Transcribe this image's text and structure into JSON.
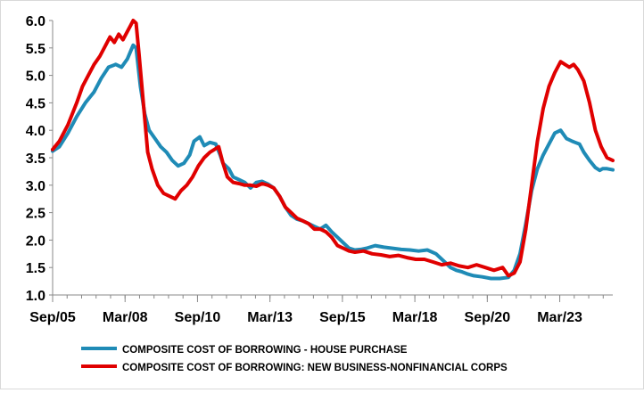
{
  "chart_data": {
    "type": "line",
    "title": "",
    "xlabel": "",
    "ylabel": "",
    "ylim": [
      1.0,
      6.0
    ],
    "yticks": [
      "1.0",
      "1.5",
      "2.0",
      "2.5",
      "3.0",
      "3.5",
      "4.0",
      "4.5",
      "5.0",
      "5.5",
      "6.0"
    ],
    "xlim": [
      2005.67,
      2025.0
    ],
    "xticks": [
      {
        "label": "Sep/05",
        "x": 2005.67
      },
      {
        "label": "Mar/08",
        "x": 2008.17
      },
      {
        "label": "Sep/10",
        "x": 2010.67
      },
      {
        "label": "Mar/13",
        "x": 2013.17
      },
      {
        "label": "Sep/15",
        "x": 2015.67
      },
      {
        "label": "Mar/18",
        "x": 2018.17
      },
      {
        "label": "Sep/20",
        "x": 2020.67
      },
      {
        "label": "Mar/23",
        "x": 2023.17
      }
    ],
    "grid": false,
    "legend_position": "bottom",
    "series": [
      {
        "name": "COMPOSITE COST OF BORROWING - HOUSE PURCHASE",
        "color": "#1f8bb6",
        "x": [
          2005.67,
          2005.9,
          2006.2,
          2006.5,
          2006.8,
          2007.1,
          2007.35,
          2007.6,
          2007.85,
          2008.05,
          2008.25,
          2008.45,
          2008.55,
          2008.7,
          2008.85,
          2009.0,
          2009.2,
          2009.4,
          2009.6,
          2009.8,
          2010.0,
          2010.2,
          2010.4,
          2010.55,
          2010.75,
          2010.9,
          2011.1,
          2011.3,
          2011.45,
          2011.55,
          2011.75,
          2011.9,
          2012.1,
          2012.3,
          2012.5,
          2012.7,
          2012.9,
          2013.1,
          2013.3,
          2013.5,
          2013.7,
          2013.9,
          2014.1,
          2014.3,
          2014.5,
          2014.7,
          2014.9,
          2015.1,
          2015.3,
          2015.5,
          2015.7,
          2015.9,
          2016.1,
          2016.3,
          2016.5,
          2016.8,
          2017.1,
          2017.4,
          2017.7,
          2018.0,
          2018.3,
          2018.6,
          2018.9,
          2019.2,
          2019.4,
          2019.6,
          2019.8,
          2020.0,
          2020.2,
          2020.5,
          2020.8,
          2021.1,
          2021.4,
          2021.6,
          2021.8,
          2022.0,
          2022.2,
          2022.4,
          2022.6,
          2022.8,
          2023.0,
          2023.2,
          2023.4,
          2023.6,
          2023.7,
          2023.85,
          2024.0,
          2024.2,
          2024.4,
          2024.55,
          2024.65,
          2024.8,
          2025.0
        ],
        "values": [
          3.62,
          3.7,
          3.95,
          4.25,
          4.5,
          4.7,
          4.95,
          5.15,
          5.2,
          5.15,
          5.3,
          5.55,
          5.5,
          4.8,
          4.3,
          4.0,
          3.85,
          3.7,
          3.6,
          3.45,
          3.35,
          3.4,
          3.55,
          3.8,
          3.88,
          3.72,
          3.78,
          3.75,
          3.55,
          3.4,
          3.3,
          3.15,
          3.1,
          3.05,
          2.95,
          3.05,
          3.07,
          3.02,
          2.95,
          2.8,
          2.6,
          2.45,
          2.38,
          2.35,
          2.3,
          2.25,
          2.2,
          2.27,
          2.15,
          2.05,
          1.95,
          1.85,
          1.82,
          1.83,
          1.85,
          1.9,
          1.87,
          1.85,
          1.83,
          1.82,
          1.8,
          1.82,
          1.75,
          1.6,
          1.5,
          1.45,
          1.42,
          1.38,
          1.35,
          1.33,
          1.3,
          1.3,
          1.32,
          1.45,
          1.75,
          2.3,
          2.9,
          3.3,
          3.55,
          3.75,
          3.95,
          4.0,
          3.85,
          3.8,
          3.78,
          3.75,
          3.6,
          3.45,
          3.32,
          3.27,
          3.3,
          3.3,
          3.28
        ]
      },
      {
        "name": "COMPOSITE COST OF BORROWING: NEW BUSINESS-NONFINANCIAL CORPS",
        "color": "#e00000",
        "x": [
          2005.67,
          2005.9,
          2006.2,
          2006.5,
          2006.7,
          2006.9,
          2007.1,
          2007.3,
          2007.5,
          2007.65,
          2007.8,
          2007.95,
          2008.1,
          2008.25,
          2008.35,
          2008.45,
          2008.55,
          2008.65,
          2008.8,
          2008.95,
          2009.1,
          2009.3,
          2009.5,
          2009.7,
          2009.9,
          2010.1,
          2010.3,
          2010.5,
          2010.7,
          2010.9,
          2011.1,
          2011.25,
          2011.4,
          2011.55,
          2011.7,
          2011.9,
          2012.1,
          2012.3,
          2012.5,
          2012.7,
          2012.9,
          2013.1,
          2013.3,
          2013.5,
          2013.7,
          2013.9,
          2014.1,
          2014.3,
          2014.5,
          2014.7,
          2014.9,
          2015.1,
          2015.3,
          2015.5,
          2015.7,
          2015.9,
          2016.1,
          2016.4,
          2016.7,
          2017.0,
          2017.3,
          2017.6,
          2017.9,
          2018.2,
          2018.5,
          2018.8,
          2019.1,
          2019.4,
          2019.7,
          2020.0,
          2020.3,
          2020.6,
          2020.9,
          2021.2,
          2021.4,
          2021.6,
          2021.8,
          2022.0,
          2022.2,
          2022.4,
          2022.6,
          2022.8,
          2023.0,
          2023.2,
          2023.35,
          2023.5,
          2023.65,
          2023.8,
          2024.0,
          2024.2,
          2024.4,
          2024.6,
          2024.8,
          2025.0
        ],
        "values": [
          3.65,
          3.8,
          4.1,
          4.5,
          4.8,
          5.0,
          5.2,
          5.35,
          5.55,
          5.7,
          5.6,
          5.75,
          5.65,
          5.8,
          5.9,
          6.0,
          5.95,
          5.4,
          4.5,
          3.6,
          3.3,
          3.0,
          2.85,
          2.8,
          2.75,
          2.9,
          3.0,
          3.15,
          3.35,
          3.5,
          3.6,
          3.65,
          3.7,
          3.4,
          3.15,
          3.05,
          3.03,
          3.0,
          3.0,
          2.98,
          3.03,
          3.0,
          2.95,
          2.8,
          2.6,
          2.5,
          2.4,
          2.35,
          2.3,
          2.2,
          2.2,
          2.15,
          2.05,
          1.9,
          1.85,
          1.8,
          1.78,
          1.8,
          1.75,
          1.73,
          1.7,
          1.72,
          1.68,
          1.65,
          1.65,
          1.6,
          1.55,
          1.58,
          1.53,
          1.5,
          1.55,
          1.5,
          1.45,
          1.5,
          1.35,
          1.4,
          1.6,
          2.2,
          3.0,
          3.8,
          4.4,
          4.8,
          5.05,
          5.25,
          5.2,
          5.15,
          5.2,
          5.1,
          4.9,
          4.5,
          4.0,
          3.7,
          3.5,
          3.45
        ]
      }
    ]
  }
}
